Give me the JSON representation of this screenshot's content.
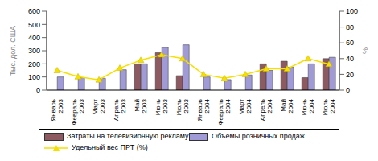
{
  "chart_data": {
    "type": "bar",
    "ylabel": "Тыс. дол. США",
    "y2label": "%",
    "categories": [
      "Январь 2003",
      "Февраль 2003",
      "Март 2003",
      "Апрель 2003",
      "Май 2003",
      "Июнь 2003",
      "Июль 2003",
      "Январь 2004",
      "Февраль 2004",
      "Март 2004",
      "Апрель 2004",
      "Май 2004",
      "Июнь 2004",
      "Июль 2004"
    ],
    "ylim": [
      0,
      600
    ],
    "yticks": [
      0,
      100,
      200,
      300,
      400,
      500,
      600
    ],
    "y2lim": [
      0,
      100
    ],
    "y2ticks": [
      0,
      20,
      40,
      60,
      80,
      100
    ],
    "grid": false,
    "series": [
      {
        "name": "Затраты на телевизионную рекламу",
        "type": "bar",
        "color": "#8c5a60",
        "values": [
          0,
          0,
          0,
          0,
          200,
          285,
          110,
          0,
          0,
          0,
          200,
          220,
          95,
          240
        ]
      },
      {
        "name": "Объемы розничных продаж",
        "type": "bar",
        "color": "#a09bd7",
        "values": [
          100,
          95,
          90,
          155,
          200,
          325,
          345,
          100,
          80,
          115,
          150,
          175,
          200,
          250
        ]
      },
      {
        "name": "Удельный вес ПРТ (%)",
        "type": "line",
        "axis": "y2",
        "marker": "triangle",
        "color": "#f5e000",
        "values": [
          25,
          17,
          13,
          28,
          38,
          45,
          40,
          20,
          15,
          20,
          27,
          27,
          40,
          33
        ]
      }
    ]
  }
}
